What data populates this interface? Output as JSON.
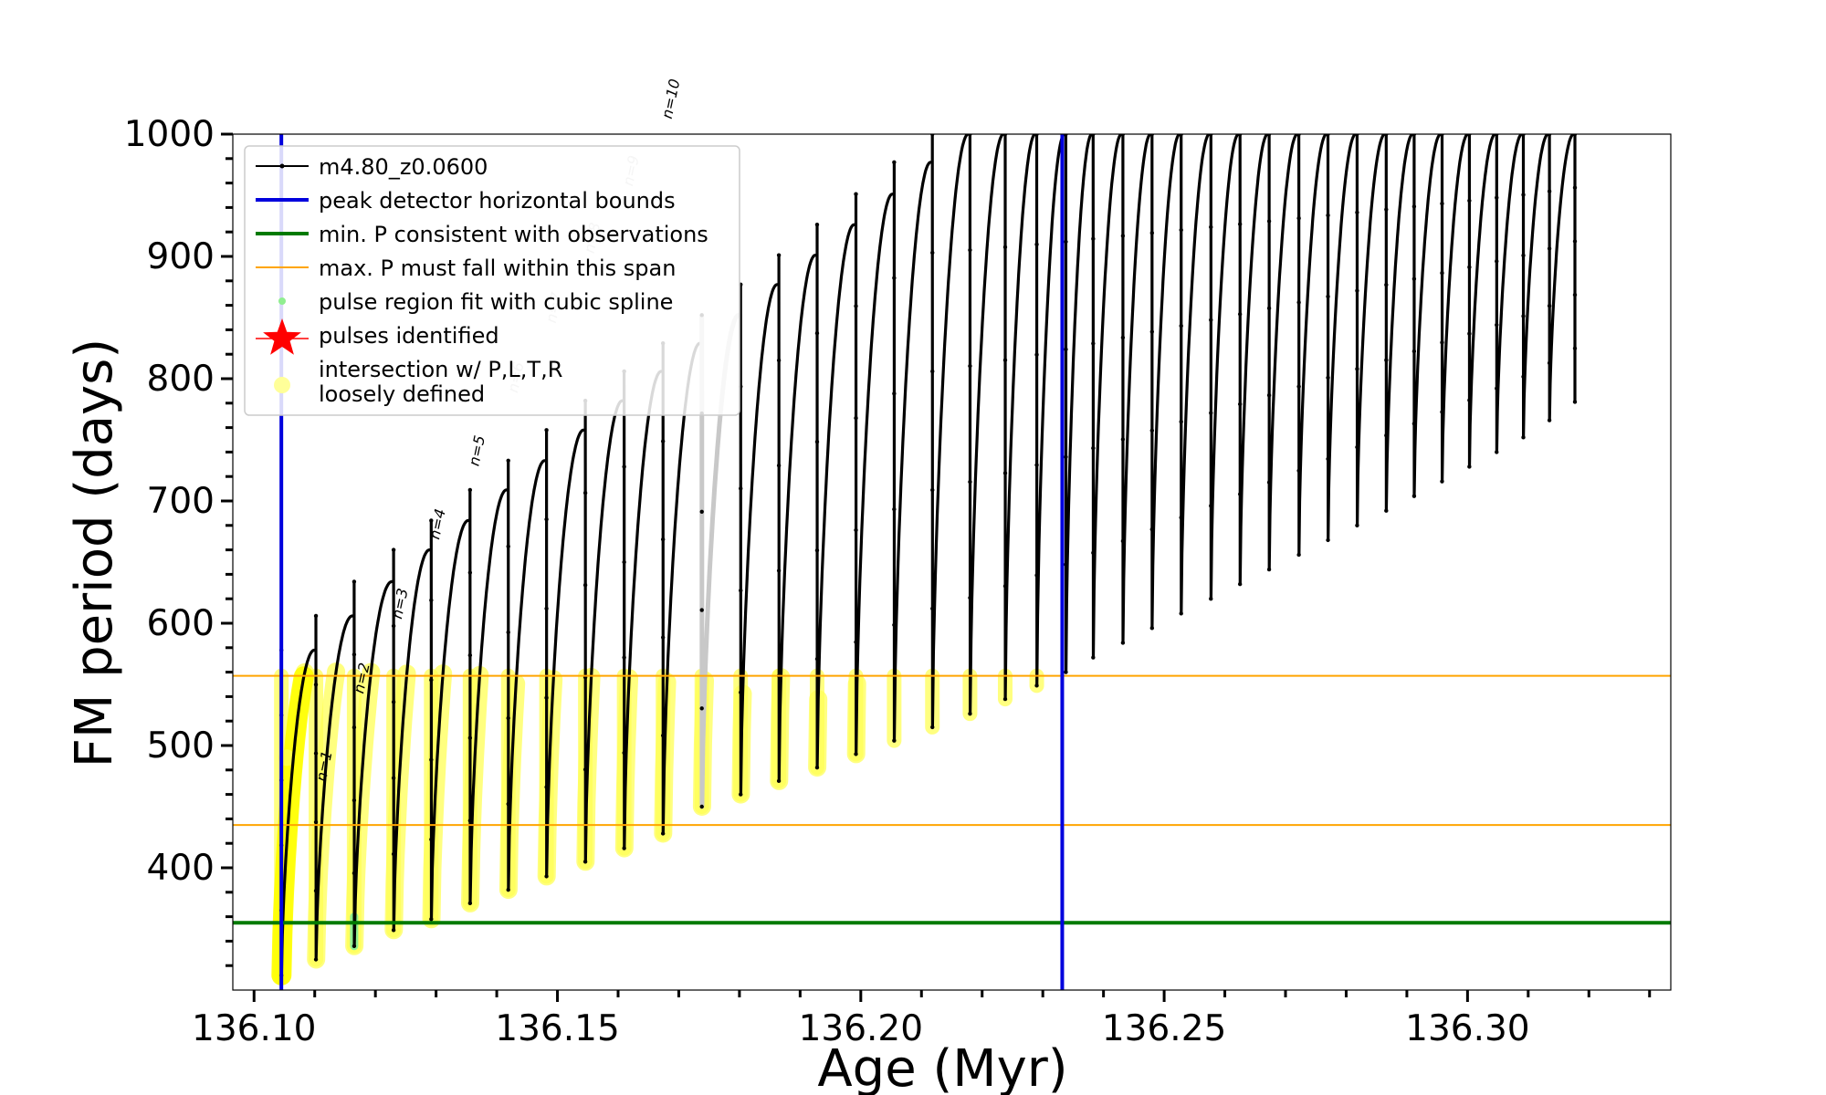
{
  "chart_data": {
    "type": "line",
    "title": "",
    "xlabel": "Age (Myr)",
    "ylabel": "FM period (days)",
    "xlim": [
      136.0965,
      136.3335
    ],
    "ylim": [
      300,
      1000
    ],
    "xticks": [
      136.1,
      136.15,
      136.2,
      136.25,
      136.3
    ],
    "xtick_labels": [
      "136.10",
      "136.15",
      "136.20",
      "136.25",
      "136.30"
    ],
    "yticks": [
      400,
      500,
      600,
      700,
      800,
      900,
      1000
    ],
    "ytick_labels": [
      "400",
      "500",
      "600",
      "700",
      "800",
      "900",
      "1000"
    ],
    "series": [
      {
        "name": "m4.80_z0.0600",
        "color": "#000000",
        "pulses": [
          {
            "start": 136.1045,
            "end": 136.1102,
            "min": 312,
            "max": 578
          },
          {
            "start": 136.1102,
            "end": 136.1165,
            "min": 325,
            "max": 606
          },
          {
            "start": 136.1165,
            "end": 136.123,
            "min": 336,
            "max": 634
          },
          {
            "start": 136.123,
            "end": 136.1292,
            "min": 349,
            "max": 660
          },
          {
            "start": 136.1292,
            "end": 136.1356,
            "min": 358,
            "max": 684
          },
          {
            "start": 136.1356,
            "end": 136.1419,
            "min": 371,
            "max": 709
          },
          {
            "start": 136.1419,
            "end": 136.1482,
            "min": 382,
            "max": 733
          },
          {
            "start": 136.1482,
            "end": 136.1546,
            "min": 393,
            "max": 758
          },
          {
            "start": 136.1546,
            "end": 136.161,
            "min": 405,
            "max": 782
          },
          {
            "start": 136.161,
            "end": 136.1674,
            "min": 416,
            "max": 806
          },
          {
            "start": 136.1674,
            "end": 136.1738,
            "min": 428,
            "max": 829
          },
          {
            "start": 136.1738,
            "end": 136.1802,
            "min": 450,
            "max": 852
          },
          {
            "start": 136.1802,
            "end": 136.1865,
            "min": 460,
            "max": 877
          },
          {
            "start": 136.1865,
            "end": 136.1928,
            "min": 471,
            "max": 901
          },
          {
            "start": 136.1928,
            "end": 136.1992,
            "min": 482,
            "max": 926
          },
          {
            "start": 136.1992,
            "end": 136.2055,
            "min": 493,
            "max": 951
          },
          {
            "start": 136.2055,
            "end": 136.2118,
            "min": 504,
            "max": 977
          },
          {
            "start": 136.2118,
            "end": 136.218,
            "min": 515,
            "max": 1000
          },
          {
            "start": 136.218,
            "end": 136.2238,
            "min": 526,
            "max": 1000
          },
          {
            "start": 136.2238,
            "end": 136.229,
            "min": 538,
            "max": 1000
          },
          {
            "start": 136.229,
            "end": 136.2338,
            "min": 549,
            "max": 1000
          },
          {
            "start": 136.2338,
            "end": 136.2383,
            "min": 560,
            "max": 1000
          },
          {
            "start": 136.2383,
            "end": 136.2432,
            "min": 572,
            "max": 1000
          },
          {
            "start": 136.2432,
            "end": 136.248,
            "min": 584,
            "max": 1000
          },
          {
            "start": 136.248,
            "end": 136.2528,
            "min": 596,
            "max": 1000
          },
          {
            "start": 136.2528,
            "end": 136.2577,
            "min": 608,
            "max": 1000
          },
          {
            "start": 136.2577,
            "end": 136.2625,
            "min": 620,
            "max": 1000
          },
          {
            "start": 136.2625,
            "end": 136.2673,
            "min": 632,
            "max": 1000
          },
          {
            "start": 136.2673,
            "end": 136.2722,
            "min": 644,
            "max": 1000
          },
          {
            "start": 136.2722,
            "end": 136.277,
            "min": 656,
            "max": 1000
          },
          {
            "start": 136.277,
            "end": 136.2818,
            "min": 668,
            "max": 1000
          },
          {
            "start": 136.2818,
            "end": 136.2866,
            "min": 680,
            "max": 1000
          },
          {
            "start": 136.2866,
            "end": 136.2912,
            "min": 692,
            "max": 1000
          },
          {
            "start": 136.2912,
            "end": 136.2958,
            "min": 704,
            "max": 1000
          },
          {
            "start": 136.2958,
            "end": 136.3003,
            "min": 716,
            "max": 1000
          },
          {
            "start": 136.3003,
            "end": 136.3048,
            "min": 728,
            "max": 1000
          },
          {
            "start": 136.3048,
            "end": 136.3092,
            "min": 740,
            "max": 1000
          },
          {
            "start": 136.3092,
            "end": 136.3135,
            "min": 752,
            "max": 1000
          },
          {
            "start": 136.3135,
            "end": 136.3177,
            "min": 766,
            "max": 1000
          },
          {
            "start": 136.3177,
            "end": 136.3177,
            "min": 781,
            "max": 1000
          }
        ]
      }
    ],
    "peak_detector_bounds_x": [
      136.1045,
      136.2332
    ],
    "min_P_observations": 355,
    "max_P_span": [
      435,
      557
    ],
    "spline_fit_extra": {
      "x": 136.1165,
      "min": 336,
      "max": 360
    },
    "pulse_labels": [
      {
        "text": "n=1",
        "x": 136.1118,
        "y": 470,
        "color": "#000000"
      },
      {
        "text": "n=2",
        "x": 136.118,
        "y": 542,
        "color": "#000000"
      },
      {
        "text": "n=3",
        "x": 136.1243,
        "y": 603,
        "color": "#000000"
      },
      {
        "text": "n=4",
        "x": 136.1305,
        "y": 668,
        "color": "#000000"
      },
      {
        "text": "n=5",
        "x": 136.137,
        "y": 728,
        "color": "#000000"
      },
      {
        "text": "n=6",
        "x": 136.1434,
        "y": 788,
        "color": "#bbbbbb"
      },
      {
        "text": "n=7",
        "x": 136.1497,
        "y": 845,
        "color": "#bbbbbb"
      },
      {
        "text": "n=8",
        "x": 136.156,
        "y": 902,
        "color": "#bbbbbb"
      },
      {
        "text": "n=9",
        "x": 136.1624,
        "y": 957,
        "color": "#bbbbbb"
      },
      {
        "text": "n=10",
        "x": 136.1688,
        "y": 1012,
        "color": "#000000"
      }
    ],
    "grey_sections": [
      {
        "start": 136.1738,
        "end": 136.1802
      }
    ],
    "legend": {
      "placement": "top-left",
      "entries": [
        {
          "label": "m4.80_z0.0600",
          "style": "line-marker",
          "color": "#000000"
        },
        {
          "label": "peak detector horizontal bounds",
          "style": "line",
          "color": "#0000dd"
        },
        {
          "label": "min. P consistent with observations",
          "style": "line",
          "color": "#007a00"
        },
        {
          "label": "max. P must fall within this span",
          "style": "thin-line",
          "color": "#ffa500"
        },
        {
          "label": "pulse region fit with cubic spline",
          "style": "dot",
          "color": "#90ee90"
        },
        {
          "label": "pulses identified",
          "style": "star",
          "color": "#ff0000"
        },
        {
          "label": "intersection w/ P,L,T,R",
          "label2": "loosely defined",
          "style": "circle",
          "color": "#ffff99"
        }
      ]
    },
    "colors": {
      "track": "#000000",
      "bounds": "#0000dd",
      "min_p": "#007a00",
      "max_p": "#ffa500",
      "spline": "#90ee90",
      "star": "#ff0000",
      "intersection": "#ffff55",
      "grey": "#c8c8c8"
    }
  }
}
